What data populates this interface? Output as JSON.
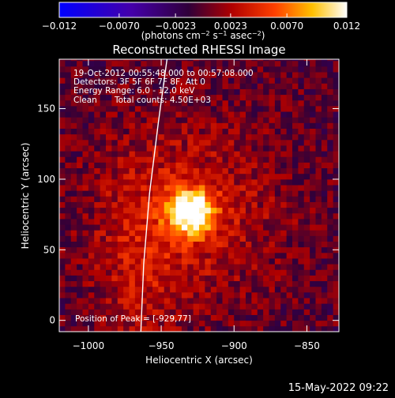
{
  "chart_data": {
    "type": "heatmap",
    "title": "Reconstructed RHESSI Image",
    "xlabel": "Heliocentric X (arcsec)",
    "ylabel": "Heliocentric Y (arcsec)",
    "xlim": [
      -1020,
      -828
    ],
    "ylim": [
      -8,
      185
    ],
    "x_ticks": [
      -1000,
      -950,
      -900,
      -850
    ],
    "y_ticks": [
      0,
      50,
      100,
      150
    ],
    "x_tick_labels": [
      "−1000",
      "−950",
      "−900",
      "−850"
    ],
    "y_tick_labels": [
      "0",
      "50",
      "100",
      "150"
    ],
    "colorbar": {
      "range": [
        -0.012,
        0.012
      ],
      "ticks": [
        -0.012,
        -0.007,
        -0.0023,
        0.0023,
        0.007,
        0.012
      ],
      "tick_labels": [
        "−0.012",
        "−0.0070",
        "−0.0023",
        "0.0023",
        "0.0070",
        "0.012"
      ],
      "units_prefix": "(photons cm",
      "units_exp1": "−2",
      "units_mid1": " s",
      "units_exp2": "−1",
      "units_mid2": " asec",
      "units_exp3": "−2",
      "units_suffix": ")"
    },
    "annotations": {
      "time": "19-Oct-2012 00:55:48.000 to 00:57:08.000",
      "detectors": "Detectors: 3F 5F 6F 7F 8F, Att 0",
      "energy": "Energy Range: 6.0 - 12.0 keV",
      "clean": "Clean",
      "counts": "Total counts: 4.50E+03",
      "peak": "Position of Peak = [-929,77]"
    },
    "peak": {
      "x": -929,
      "y": 77,
      "value": 0.012
    },
    "limb_curve": [
      {
        "x": -964,
        "y": -8
      },
      {
        "x": -962,
        "y": 40
      },
      {
        "x": -958,
        "y": 90
      },
      {
        "x": -952,
        "y": 140
      },
      {
        "x": -946,
        "y": 185
      }
    ]
  },
  "footer": {
    "date": "15-May-2022 09:22"
  }
}
